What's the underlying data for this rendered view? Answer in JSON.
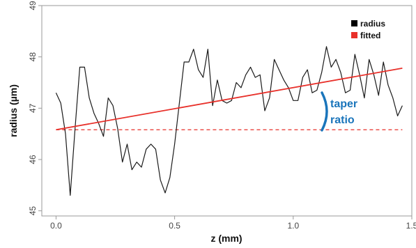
{
  "chart_data": {
    "type": "line",
    "title": "",
    "xlabel": "z (mm)",
    "ylabel": "radius (µm)",
    "xlim": [
      -0.06,
      1.5
    ],
    "ylim": [
      44.9,
      49.0
    ],
    "x_ticks": [
      0.0,
      0.5,
      1.0,
      1.5
    ],
    "x_tick_labels": [
      "0.0",
      "0.5",
      "1.0",
      "1.5"
    ],
    "y_ticks": [
      45,
      46,
      47,
      48,
      49
    ],
    "y_tick_labels": [
      "45",
      "46",
      "47",
      "48",
      "49"
    ],
    "grid": false,
    "legend_position": "top-right",
    "legend": [
      {
        "label": "radius",
        "color": "#000000"
      },
      {
        "label": "fitted",
        "color": "#e8302a"
      }
    ],
    "series": [
      {
        "name": "radius",
        "color": "#1a1a1a",
        "x": [
          0.0,
          0.02,
          0.04,
          0.06,
          0.08,
          0.1,
          0.12,
          0.14,
          0.16,
          0.18,
          0.2,
          0.22,
          0.24,
          0.26,
          0.28,
          0.3,
          0.32,
          0.34,
          0.36,
          0.38,
          0.4,
          0.42,
          0.44,
          0.46,
          0.48,
          0.5,
          0.52,
          0.54,
          0.56,
          0.58,
          0.6,
          0.62,
          0.64,
          0.66,
          0.68,
          0.7,
          0.72,
          0.74,
          0.76,
          0.78,
          0.8,
          0.82,
          0.84,
          0.86,
          0.88,
          0.9,
          0.92,
          0.94,
          0.96,
          0.98,
          1.0,
          1.02,
          1.04,
          1.06,
          1.08,
          1.1,
          1.12,
          1.14,
          1.16,
          1.18,
          1.2,
          1.22,
          1.24,
          1.26,
          1.28,
          1.3,
          1.32,
          1.34,
          1.36,
          1.38,
          1.4,
          1.42,
          1.44,
          1.46
        ],
        "y": [
          47.3,
          47.1,
          46.5,
          45.3,
          46.6,
          47.8,
          47.8,
          47.2,
          46.9,
          46.7,
          46.45,
          47.2,
          47.05,
          46.6,
          45.95,
          46.3,
          45.8,
          45.95,
          45.85,
          46.2,
          46.3,
          46.2,
          45.6,
          45.35,
          45.65,
          46.3,
          47.1,
          47.9,
          47.9,
          48.15,
          47.75,
          47.6,
          48.15,
          47.05,
          47.55,
          47.15,
          47.1,
          47.15,
          47.5,
          47.4,
          47.65,
          47.8,
          47.6,
          47.65,
          46.95,
          47.2,
          47.95,
          47.75,
          47.55,
          47.4,
          47.15,
          47.15,
          47.6,
          47.75,
          47.3,
          47.35,
          47.7,
          48.2,
          47.8,
          47.95,
          47.7,
          47.3,
          47.35,
          48.05,
          47.65,
          47.2,
          47.95,
          47.65,
          47.25,
          47.9,
          47.45,
          47.2,
          46.85,
          47.05
        ]
      },
      {
        "name": "fitted",
        "color": "#e8302a",
        "x": [
          0.0,
          1.46
        ],
        "y": [
          46.58,
          47.78
        ]
      }
    ],
    "reference_line": {
      "y": 46.58,
      "x": [
        0.0,
        1.46
      ],
      "color": "#e8302a",
      "style": "dashed"
    },
    "annotation": {
      "lines": [
        "taper",
        "ratio"
      ],
      "color": "#1a75bb"
    }
  }
}
